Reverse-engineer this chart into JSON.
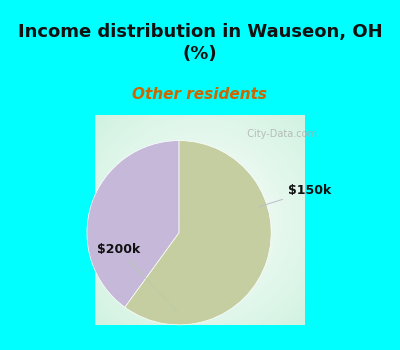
{
  "title": "Income distribution in Wauseon, OH\n(%)",
  "subtitle": "Other residents",
  "background_color": "#00ffff",
  "slices": [
    {
      "label": "$150k",
      "value": 40,
      "color": "#c5b8d8"
    },
    {
      "label": "$200k",
      "value": 60,
      "color": "#c5ceA0"
    }
  ],
  "title_fontsize": 13,
  "subtitle_fontsize": 11,
  "title_color": "#111111",
  "subtitle_color": "#cc6600",
  "label_color": "#111111",
  "label_fontsize": 9,
  "watermark": "  City-Data.com",
  "startangle": 90
}
